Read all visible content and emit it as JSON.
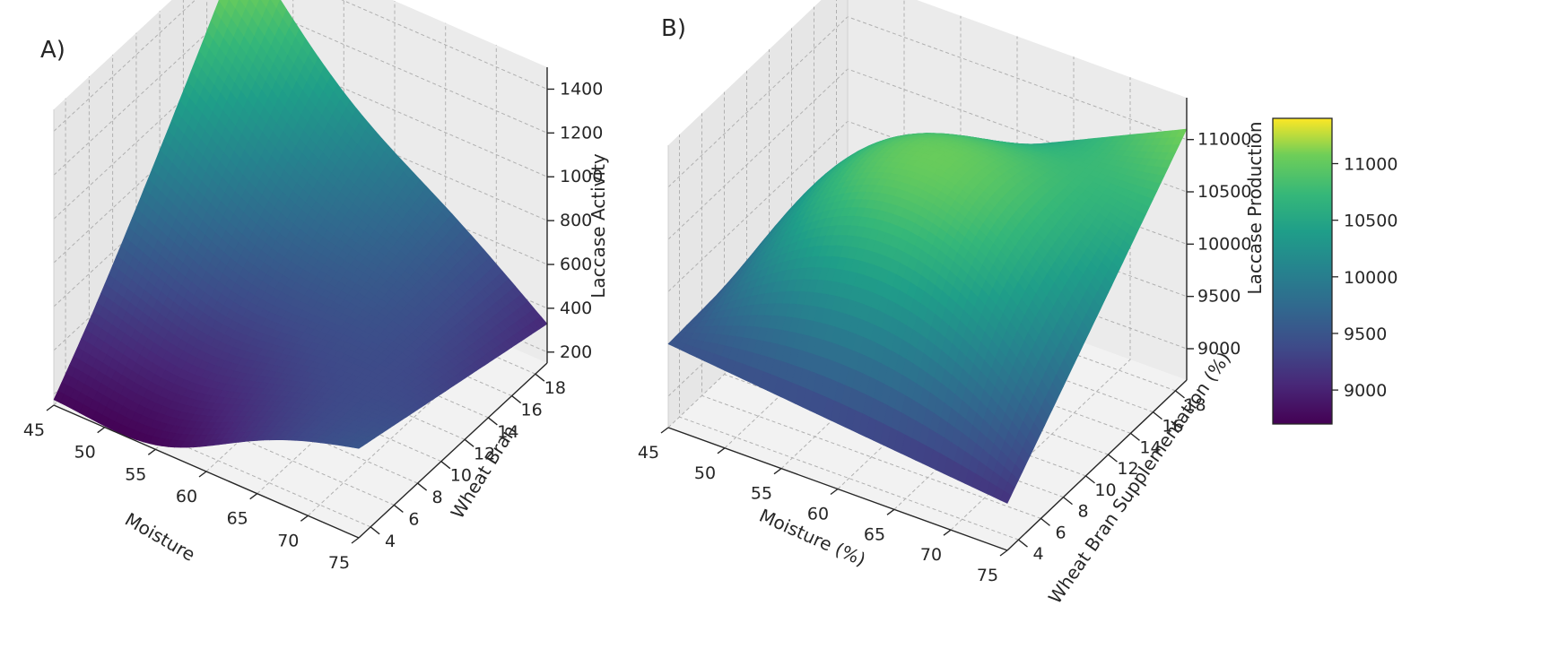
{
  "chart_data": [
    {
      "panel_label": "A)",
      "type": "surface3d",
      "xlabel": "Moisture",
      "ylabel": "Wheat Bran",
      "zlabel": "Laccase Activity",
      "x_ticks": [
        "45",
        "50",
        "55",
        "60",
        "65",
        "70",
        "75"
      ],
      "y_ticks": [
        "4",
        "6",
        "8",
        "10",
        "12",
        "14",
        "16",
        "18"
      ],
      "z_ticks": [
        "200",
        "400",
        "600",
        "800",
        "1000",
        "1200",
        "1400"
      ],
      "xlim": [
        45,
        75
      ],
      "ylim": [
        3,
        19
      ],
      "zlim": [
        150,
        1500
      ],
      "corner_values": {
        "moisture_45_bran_4": 220,
        "moisture_75_bran_4": 560,
        "moisture_45_bran_18": 1390,
        "moisture_75_bran_18": 330
      },
      "minimum_value": 60,
      "colormap": "viridis"
    },
    {
      "panel_label": "B)",
      "type": "surface3d",
      "xlabel": "Moisture (%)",
      "ylabel": "Wheat Bran Supplementation (%)",
      "zlabel": "Laccase Production",
      "x_ticks": [
        "45",
        "50",
        "55",
        "60",
        "65",
        "70",
        "75"
      ],
      "y_ticks": [
        "4",
        "6",
        "8",
        "10",
        "12",
        "14",
        "16",
        "18"
      ],
      "z_ticks": [
        "9000",
        "9500",
        "10000",
        "10500",
        "11000"
      ],
      "xlim": [
        45,
        75
      ],
      "ylim": [
        3,
        19
      ],
      "zlim": [
        8700,
        11400
      ],
      "corner_values": {
        "moisture_45_bran_4": 9500,
        "moisture_75_bran_4": 9150,
        "moisture_45_bran_18": 9600,
        "moisture_75_bran_18": 11100
      },
      "peak_value": 11250,
      "colormap": "viridis",
      "colorbar": {
        "ticks": [
          "9000",
          "9500",
          "10000",
          "10500",
          "11000"
        ],
        "range": [
          8700,
          11400
        ]
      }
    }
  ]
}
